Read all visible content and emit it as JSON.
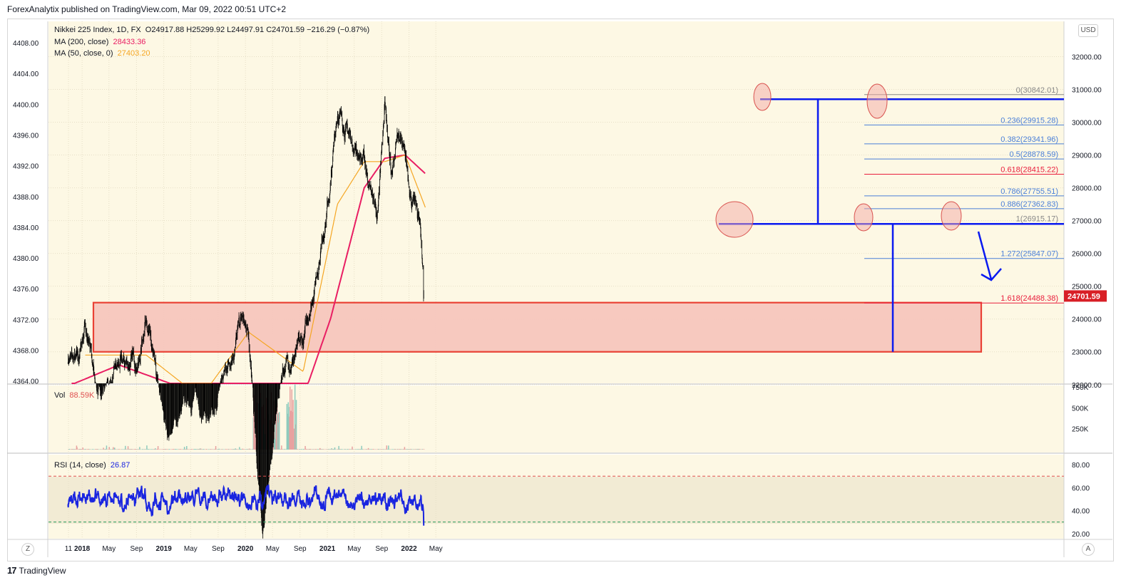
{
  "header": {
    "published_by": "ForexAnalytix published on TradingView.com, Mar 09, 2022 00:51 UTC+2"
  },
  "footer": {
    "logo_icon": "tradingview-logo-icon",
    "brand": "TradingView"
  },
  "controls": {
    "currency": "USD",
    "zoom_left": "Z",
    "auto_right": "A"
  },
  "legend": {
    "symbol": "Nikkei 225 Index, 1D, FX",
    "ohlc": "O24917.88 H25299.92 L24497.91 C24701.59 −216.29 (−0.87%)",
    "ma200_label": "MA (200, close)",
    "ma200_value": "28433.36",
    "ma50_label": "MA (50, close, 0)",
    "ma50_value": "27403.20",
    "vol_label": "Vol",
    "vol_value": "88.59K",
    "rsi_label": "RSI (14, close)",
    "rsi_value": "26.87"
  },
  "colors": {
    "chart_bg": "#fdf8e4",
    "candles": "#000000",
    "ma200": "#e91e63",
    "ma50": "#f5a623",
    "annotation_blue": "#0a1af0",
    "support_zone_fill": "#f7c7be",
    "support_zone_border": "#e8392c",
    "fib_line": "#4a7fd8",
    "fib_618": "#e91e3c",
    "rsi_line": "#1a25e0",
    "last_price_bg": "#d81f26"
  },
  "chart_data": [
    {
      "type": "line",
      "title": "Nikkei 225 Index, 1D, FX",
      "y_axis_left_ticks": [
        "4408.00",
        "4404.00",
        "4400.00",
        "4396.00",
        "4392.00",
        "4388.00",
        "4384.00",
        "4380.00",
        "4376.00",
        "4372.00",
        "4368.00",
        "4364.00"
      ],
      "y_axis_right_ticks": [
        "32000.00",
        "31000.00",
        "30000.00",
        "29000.00",
        "28000.00",
        "27000.00",
        "26000.00",
        "25000.00",
        "24000.00",
        "23000.00",
        "22000.00"
      ],
      "x_axis_ticks": [
        "11",
        "2018",
        "May",
        "Sep",
        "2019",
        "May",
        "Sep",
        "2020",
        "May",
        "Sep",
        "2021",
        "May",
        "Sep",
        "2022",
        "May"
      ],
      "ylim": [
        21800,
        32600
      ],
      "series": [
        {
          "name": "Nikkei 225 Index",
          "x": [
            "2017-11",
            "2017-12",
            "2018-01",
            "2018-03",
            "2018-06",
            "2018-09",
            "2018-10",
            "2018-12",
            "2019-01",
            "2019-05",
            "2019-08",
            "2019-09",
            "2019-12",
            "2020-01",
            "2020-03",
            "2020-06",
            "2020-09",
            "2020-11",
            "2020-12",
            "2021-01",
            "2021-02",
            "2021-04",
            "2021-06",
            "2021-08",
            "2021-09",
            "2021-10",
            "2021-11",
            "2021-12",
            "2022-01",
            "2022-02",
            "2022-03"
          ],
          "values": [
            22800,
            22600,
            23900,
            21500,
            22500,
            22800,
            24270,
            21200,
            20300,
            21500,
            20600,
            22000,
            24000,
            23300,
            17200,
            22500,
            23200,
            25500,
            26800,
            28000,
            30400,
            29500,
            28800,
            27100,
            30500,
            28500,
            29700,
            28700,
            27700,
            27000,
            24701.59
          ]
        },
        {
          "name": "MA (200, close)",
          "x": [
            "2017-11",
            "2018-06",
            "2019-06",
            "2020-03",
            "2020-09",
            "2021-01",
            "2021-06",
            "2021-09",
            "2021-12",
            "2022-03"
          ],
          "values": [
            22000,
            22600,
            21700,
            21900,
            21600,
            24000,
            28000,
            28900,
            29000,
            28433.36
          ]
        },
        {
          "name": "MA (50, close, 0)",
          "x": [
            "2018-01",
            "2018-10",
            "2019-06",
            "2020-01",
            "2020-09",
            "2021-02",
            "2021-06",
            "2021-09",
            "2021-12",
            "2022-03"
          ],
          "values": [
            22900,
            22900,
            21600,
            23600,
            22400,
            27500,
            28800,
            28800,
            29000,
            27403.2
          ]
        }
      ],
      "last_price": "24701.59",
      "fibonacci_levels": [
        {
          "label": "0(30842.01)",
          "value": 30842.01
        },
        {
          "label": "0.236(29915.28)",
          "value": 29915.28
        },
        {
          "label": "0.382(29341.96)",
          "value": 29341.96
        },
        {
          "label": "0.5(28878.59)",
          "value": 28878.59
        },
        {
          "label": "0.618(28415.22)",
          "value": 28415.22
        },
        {
          "label": "0.786(27755.51)",
          "value": 27755.51
        },
        {
          "label": "0.886(27362.83)",
          "value": 27362.83
        },
        {
          "label": "1(26915.17)",
          "value": 26915.17
        },
        {
          "label": "1.272(25847.07)",
          "value": 25847.07
        },
        {
          "label": "1.618(24488.38)",
          "value": 24488.38
        }
      ],
      "annotations": {
        "support_zone": {
          "from": 23000,
          "to": 24500
        },
        "range_top": 30700,
        "range_bottom": 26900
      }
    },
    {
      "type": "bar",
      "title": "Vol",
      "y_axis_ticks": [
        "750K",
        "500K",
        "250K"
      ],
      "ylim": [
        0,
        750000
      ],
      "last_value": "88.59K"
    },
    {
      "type": "line",
      "title": "RSI (14, close)",
      "y_axis_ticks": [
        "80.00",
        "60.00",
        "40.00",
        "20.00"
      ],
      "ylim": [
        18,
        84
      ],
      "overbought": 70,
      "oversold": 30,
      "last_value": 26.87
    }
  ]
}
